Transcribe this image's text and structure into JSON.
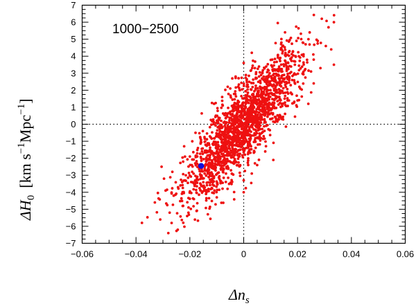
{
  "chart_data": {
    "type": "scatter",
    "annotation": "1000−2500",
    "xlabel": "Δn",
    "xlabel_sub": "s",
    "ylabel": "ΔH",
    "ylabel_sub": "0",
    "ylabel_units_pre": "[km s",
    "ylabel_units_sup": "−1",
    "ylabel_units_mid": "Mpc",
    "ylabel_units_sup2": "−1",
    "ylabel_units_post": "]",
    "xlim": [
      -0.06,
      0.06
    ],
    "ylim": [
      -7,
      7
    ],
    "xticks": [
      -0.06,
      -0.04,
      -0.02,
      0,
      0.02,
      0.04,
      0.06
    ],
    "xtick_labels": [
      "−0.06",
      "−0.04",
      "−0.02",
      "0",
      "0.02",
      "0.04",
      "0.06"
    ],
    "yticks": [
      -7,
      -6,
      -5,
      -4,
      -3,
      -2,
      -1,
      0,
      1,
      2,
      3,
      4,
      5,
      6,
      7
    ],
    "ytick_labels": [
      "−7",
      "−6",
      "−5",
      "−4",
      "−3",
      "−2",
      "−1",
      "0",
      "1",
      "2",
      "3",
      "4",
      "5",
      "6",
      "7"
    ],
    "reference_lines": {
      "x": 0,
      "y": 0,
      "style": "dotted"
    },
    "series": [
      {
        "color": "#ee1111",
        "points": [
          [
            -0.0378,
            -5.8
          ],
          [
            -0.033,
            -4.6
          ],
          [
            -0.031,
            -5.6
          ],
          [
            -0.0296,
            -3.2
          ],
          [
            -0.028,
            -6.4
          ],
          [
            -0.0275,
            -5.2
          ],
          [
            -0.026,
            -4.2
          ],
          [
            -0.0245,
            -6.2
          ],
          [
            -0.0235,
            -3.6
          ],
          [
            -0.0225,
            -4.8
          ],
          [
            -0.021,
            -5.4
          ],
          [
            -0.0305,
            -2.5
          ],
          [
            -0.0265,
            -2.8
          ],
          [
            -0.029,
            -3.9
          ],
          [
            -0.0225,
            -2.2
          ],
          [
            -0.0195,
            -3.4
          ],
          [
            -0.0185,
            -4.4
          ],
          [
            -0.0175,
            -5.1
          ],
          [
            -0.0165,
            -2.6
          ],
          [
            -0.016,
            -3.9
          ],
          [
            -0.0155,
            -1.6
          ],
          [
            -0.0145,
            -2.9
          ],
          [
            -0.014,
            -4.1
          ],
          [
            -0.0135,
            -1.2
          ],
          [
            -0.013,
            -3.1
          ],
          [
            -0.02,
            -1.9
          ],
          [
            -0.0215,
            -3.0
          ],
          [
            -0.018,
            -2.3
          ],
          [
            -0.017,
            -1.4
          ],
          [
            -0.0125,
            -2.4
          ],
          [
            0.0335,
            6.0
          ],
          [
            0.0315,
            5.7
          ],
          [
            0.0305,
            4.6
          ],
          [
            0.029,
            6.2
          ],
          [
            0.0275,
            4.9
          ],
          [
            0.026,
            3.8
          ],
          [
            0.0245,
            5.4
          ],
          [
            0.0325,
            4.4
          ],
          [
            0.0285,
            3.3
          ],
          [
            0.023,
            4.7
          ],
          [
            0.022,
            3.0
          ],
          [
            0.021,
            2.1
          ],
          [
            0.0205,
            4.0
          ],
          [
            0.019,
            3.5
          ],
          [
            0.018,
            2.6
          ],
          [
            0.017,
            4.3
          ],
          [
            0.0165,
            1.8
          ],
          [
            0.0155,
            3.7
          ],
          [
            0.015,
            2.9
          ],
          [
            0.014,
            4.8
          ],
          [
            0.026,
            2.4
          ],
          [
            0.024,
            1.2
          ],
          [
            0.025,
            3.1
          ],
          [
            0.0335,
            3.5
          ],
          [
            0.02,
            1.4
          ],
          [
            -0.005,
            2.1
          ],
          [
            -0.008,
            1.6
          ],
          [
            0.0,
            3.6
          ],
          [
            0.003,
            4.2
          ],
          [
            -0.003,
            2.8
          ],
          [
            0.005,
            -2.4
          ],
          [
            0.008,
            -1.6
          ],
          [
            0.011,
            -2.1
          ],
          [
            0.0,
            -3.3
          ],
          [
            0.003,
            -2.9
          ],
          [
            -0.01,
            -4.3
          ],
          [
            -0.006,
            -3.8
          ],
          [
            0.0,
            -4.0
          ],
          [
            -0.011,
            1.2
          ],
          [
            0.012,
            0.2
          ]
        ]
      },
      {
        "color": "#1111dd",
        "points": [
          [
            -0.0158,
            -2.45
          ]
        ]
      }
    ]
  }
}
